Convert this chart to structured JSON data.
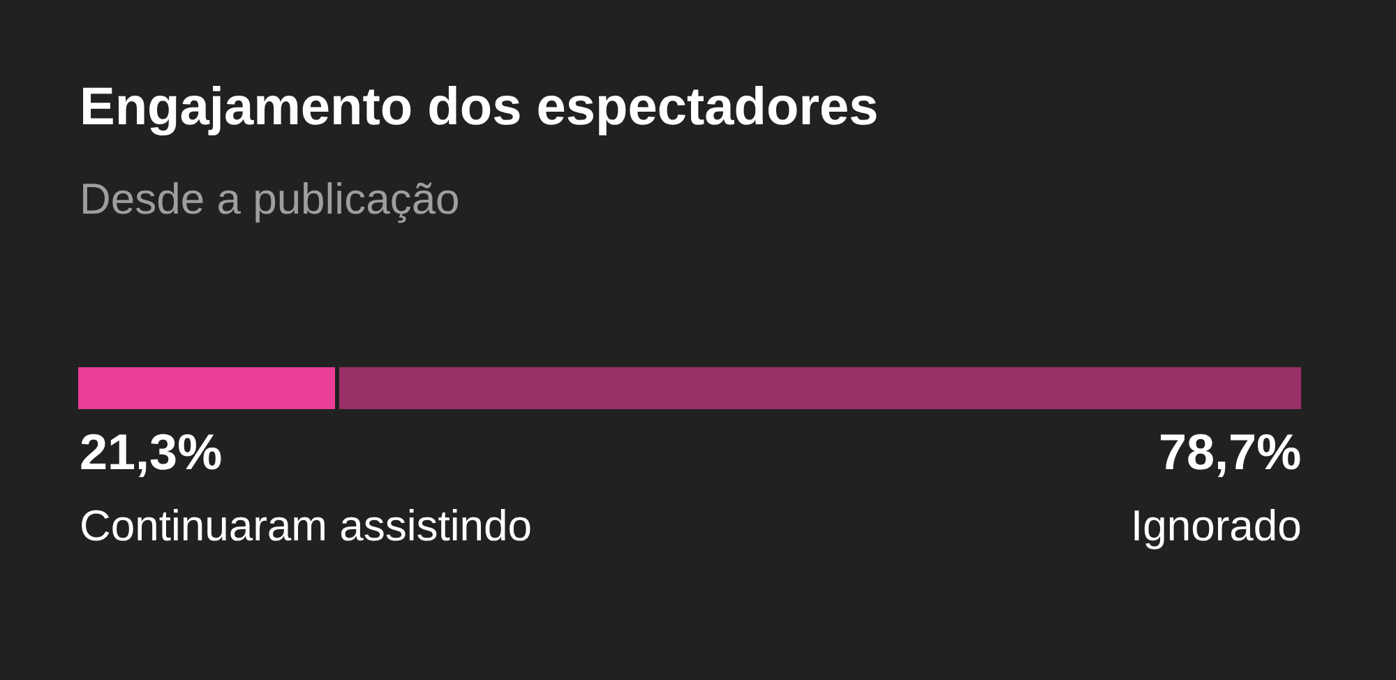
{
  "chart_data": {
    "type": "bar",
    "orientation": "horizontal",
    "stacked": true,
    "title": "Engajamento dos espectadores",
    "subtitle": "Desde a publicação",
    "categories": [
      null
    ],
    "tick_labels": false,
    "legend": false,
    "series": [
      {
        "name": "Continuaram assistindo",
        "color": "#e83e96",
        "values": [
          21.3
        ],
        "value_labels": [
          "21,3%"
        ]
      },
      {
        "name": "Ignorado",
        "color": "#9a3068",
        "values": [
          78.7
        ],
        "value_labels": [
          "78,7%"
        ]
      }
    ]
  }
}
